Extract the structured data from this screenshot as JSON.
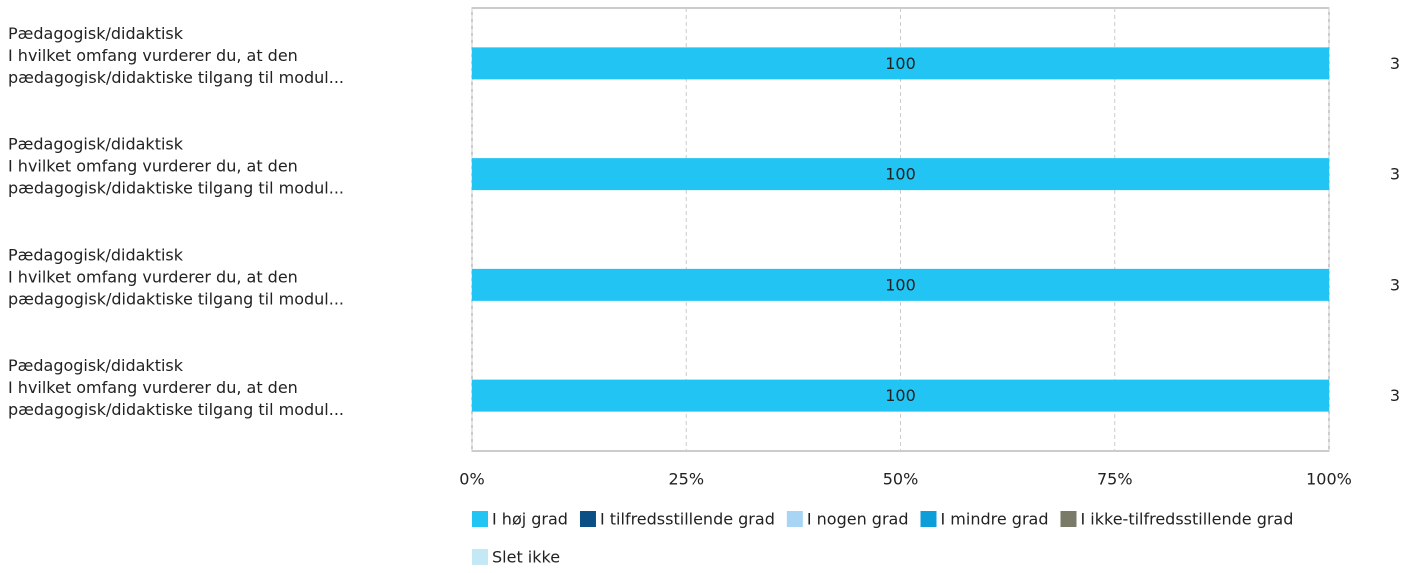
{
  "chart_data": {
    "type": "stacked-bar-horizontal",
    "categories": [
      [
        "Pædagogisk/didaktisk",
        "I hvilket omfang vurderer du, at den",
        "pædagogisk/didaktiske tilgang til modul..."
      ],
      [
        "Pædagogisk/didaktisk",
        "I hvilket omfang vurderer du, at den",
        "pædagogisk/didaktiske tilgang til modul..."
      ],
      [
        "Pædagogisk/didaktisk",
        "I hvilket omfang vurderer du, at den",
        "pædagogisk/didaktiske tilgang til modul..."
      ],
      [
        "Pædagogisk/didaktisk",
        "I hvilket omfang vurderer du, at den",
        "pædagogisk/didaktiske tilgang til modul..."
      ]
    ],
    "series": [
      {
        "name": "I høj grad",
        "color": "#21c4f2",
        "values": [
          100,
          100,
          100,
          100
        ]
      },
      {
        "name": "I tilfredsstillende grad",
        "color": "#0b4f84",
        "values": [
          0,
          0,
          0,
          0
        ]
      },
      {
        "name": "I nogen grad",
        "color": "#a8d5f3",
        "values": [
          0,
          0,
          0,
          0
        ]
      },
      {
        "name": "I mindre grad",
        "color": "#0d9ed9",
        "values": [
          0,
          0,
          0,
          0
        ]
      },
      {
        "name": "I ikke-tilfredsstillende grad",
        "color": "#7a7a68",
        "values": [
          0,
          0,
          0,
          0
        ]
      },
      {
        "name": "Slet ikke",
        "color": "#c5e8f7",
        "values": [
          0,
          0,
          0,
          0
        ]
      }
    ],
    "counts": [
      3,
      3,
      3,
      3
    ],
    "xlim": [
      0,
      100
    ],
    "xticks": [
      {
        "value": 0,
        "label": "0%"
      },
      {
        "value": 25,
        "label": "25%"
      },
      {
        "value": 50,
        "label": "50%"
      },
      {
        "value": 75,
        "label": "75%"
      },
      {
        "value": 100,
        "label": "100%"
      }
    ],
    "grid": true
  }
}
